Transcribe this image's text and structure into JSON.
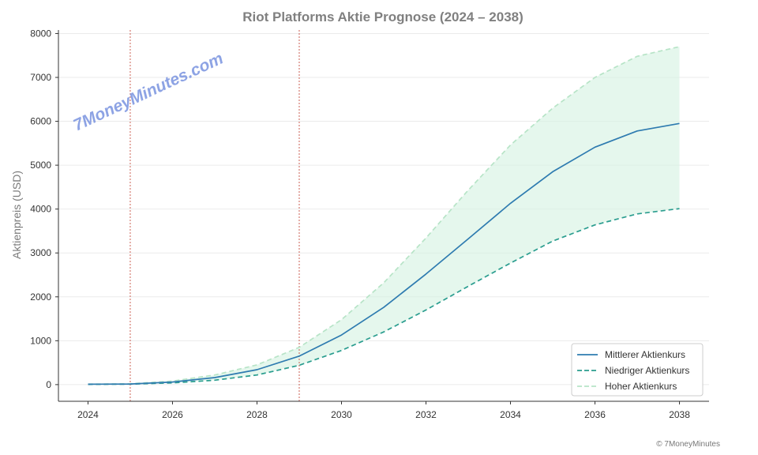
{
  "chart_data": {
    "type": "line",
    "title": "Riot Platforms Aktie Prognose (2024 – 2038)",
    "xlabel": "",
    "ylabel": "Aktienpreis (USD)",
    "xlim": [
      2023.3,
      2038.7
    ],
    "ylim": [
      -380,
      8080
    ],
    "x_ticks": [
      2024,
      2026,
      2028,
      2030,
      2032,
      2034,
      2036,
      2038
    ],
    "y_ticks": [
      0,
      1000,
      2000,
      3000,
      4000,
      5000,
      6000,
      7000,
      8000
    ],
    "x": [
      2024,
      2025,
      2026,
      2027,
      2028,
      2029,
      2030,
      2031,
      2032,
      2033,
      2034,
      2035,
      2036,
      2037,
      2038
    ],
    "series": [
      {
        "name": "Mittlerer Aktienkurs",
        "style": "solid",
        "color": "#2e7bb0",
        "values": [
          8,
          15,
          60,
          160,
          340,
          650,
          1130,
          1760,
          2520,
          3320,
          4130,
          4850,
          5410,
          5780,
          5950
        ]
      },
      {
        "name": "Niedriger Aktienkurs",
        "style": "dashed",
        "color": "#2a9d8f",
        "values": [
          5,
          10,
          40,
          100,
          220,
          440,
          780,
          1200,
          1700,
          2240,
          2770,
          3270,
          3640,
          3890,
          4010
        ]
      },
      {
        "name": "Hoher Aktienkurs",
        "style": "dashed",
        "color": "#b7e4c7",
        "values": [
          12,
          20,
          80,
          220,
          450,
          850,
          1480,
          2320,
          3340,
          4430,
          5460,
          6300,
          7000,
          7480,
          7700
        ]
      }
    ],
    "fill_between": {
      "lower": "Niedriger Aktienkurs",
      "upper": "Hoher Aktienkurs",
      "color": "#d4f1e1"
    },
    "vertical_lines": [
      2025,
      2029
    ],
    "vertical_line_color": "#c0392b",
    "grid": "horizontal",
    "legend_position": "bottom-right"
  },
  "watermark": "7MoneyMinutes.com",
  "copyright": "© 7MoneyMinutes"
}
